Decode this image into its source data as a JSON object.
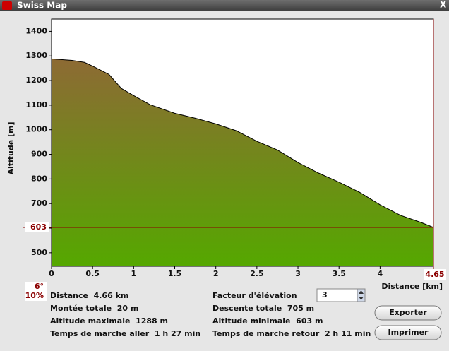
{
  "window": {
    "title": "Swiss Map",
    "close": "X"
  },
  "chart_data": {
    "type": "area",
    "x_label": "Distance [km]",
    "y_label": "Altitude [m]",
    "x": [
      0,
      0.25,
      0.4,
      0.5,
      0.7,
      0.85,
      1.0,
      1.2,
      1.5,
      1.75,
      2.0,
      2.25,
      2.5,
      2.75,
      3.0,
      3.25,
      3.5,
      3.75,
      4.0,
      4.25,
      4.5,
      4.65
    ],
    "values": [
      1288,
      1282,
      1274,
      1259,
      1225,
      1168,
      1139,
      1102,
      1067,
      1047,
      1024,
      996,
      953,
      918,
      867,
      824,
      787,
      746,
      695,
      652,
      623,
      603
    ],
    "xlim": [
      0,
      4.65
    ],
    "ylim": [
      445,
      1450
    ],
    "xticks": [
      0,
      0.5,
      1,
      1.5,
      2,
      2.5,
      3,
      3.5,
      4
    ],
    "yticks": [
      500,
      600,
      700,
      800,
      900,
      1000,
      1100,
      1200,
      1300,
      1400
    ],
    "marker_x": 4.65,
    "marker_y": 603,
    "slope_deg": "6°",
    "slope_pct": "10%",
    "colors": {
      "top": "#8d6a34",
      "bottom": "#55a800",
      "marker": "#8b0000"
    }
  },
  "stats": {
    "left": [
      "Distance  4.66 km",
      "Montée totale  20 m",
      "Altitude maximale  1288 m",
      "Temps de marche aller  1 h 27 min"
    ],
    "right": [
      "Facteur d'élévation",
      "Descente totale  705 m",
      "Altitude minimale  603 m",
      "Temps de marche retour  2 h 11 min"
    ]
  },
  "controls": {
    "factor": "3",
    "export": "Exporter",
    "print": "Imprimer"
  }
}
